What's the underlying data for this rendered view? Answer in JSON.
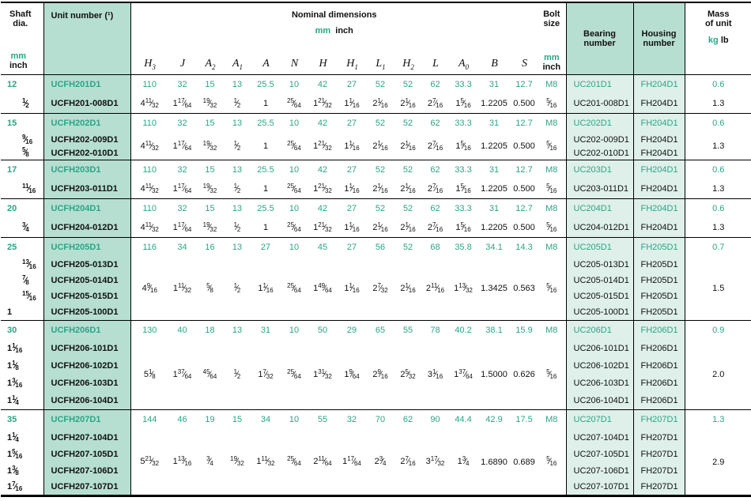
{
  "colors": {
    "accent": "#2ba586",
    "fill_dark": "#b6dfd1",
    "fill_light": "#def0e9"
  },
  "header": {
    "shaft": {
      "line1": "Shaft",
      "line2": "dia.",
      "mm": "mm",
      "inch": "inch"
    },
    "unit_number_label": "Unit number (¹)",
    "nominal": {
      "title": "Nominal dimensions",
      "mm": "mm",
      "inch": "inch"
    },
    "dim_cols": [
      "H_3",
      "J",
      "A_2",
      "A_1",
      "A",
      "N",
      "H",
      "H_1",
      "L_1",
      "H_2",
      "L",
      "A_0",
      "B",
      "S"
    ],
    "bolt": {
      "line1": "Bolt",
      "line2": "size",
      "mm": "mm",
      "inch": "inch"
    },
    "bearing": {
      "line1": "Bearing",
      "line2": "number"
    },
    "housing": {
      "line1": "Housing",
      "line2": "number"
    },
    "mass": {
      "line1": "Mass",
      "line2": "of unit",
      "kg": "kg",
      "lb": "lb"
    }
  },
  "groups": [
    {
      "shaft_mm": "12",
      "unit_mm": "UCFH201D1",
      "dims_mm": [
        "110",
        "32",
        "15",
        "13",
        "25.5",
        "10",
        "42",
        "27",
        "52",
        "52",
        "62",
        "33.3",
        "31",
        "12.7"
      ],
      "bolt_mm": "M8",
      "bearing_mm": "UC201D1",
      "housing_mm": "FH204D1",
      "mass_kg": "0.6",
      "inch_rows": [
        {
          "shaft": "1/2",
          "unit": "UCFH201-008D1",
          "bearing": "UC201-008D1",
          "housing": "FH204D1"
        }
      ],
      "dims_inch": [
        "4 11/32",
        "1 17/64",
        "19/32",
        "1/2",
        "1",
        "25/64",
        "1 21/32",
        "1 1/16",
        "2 1/16",
        "2 1/16",
        "2 7/16",
        "1 5/16",
        "1.2205",
        "0.500"
      ],
      "bolt_inch": "5/16",
      "mass_lb": "1.3"
    },
    {
      "shaft_mm": "15",
      "unit_mm": "UCFH202D1",
      "dims_mm": [
        "110",
        "32",
        "15",
        "13",
        "25.5",
        "10",
        "42",
        "27",
        "52",
        "52",
        "62",
        "33.3",
        "31",
        "12.7"
      ],
      "bolt_mm": "M8",
      "bearing_mm": "UC202D1",
      "housing_mm": "FH204D1",
      "mass_kg": "0.6",
      "inch_rows": [
        {
          "shaft": "9/16",
          "unit": "UCFH202-009D1",
          "bearing": "UC202-009D1",
          "housing": "FH204D1"
        },
        {
          "shaft": "5/8",
          "unit": "UCFH202-010D1",
          "bearing": "UC202-010D1",
          "housing": "FH204D1"
        }
      ],
      "dims_inch": [
        "4 11/32",
        "1 17/64",
        "19/32",
        "1/2",
        "1",
        "25/64",
        "1 21/32",
        "1 1/16",
        "2 1/16",
        "2 1/16",
        "2 7/16",
        "1 5/16",
        "1.2205",
        "0.500"
      ],
      "bolt_inch": "5/16",
      "mass_lb": "1.3"
    },
    {
      "shaft_mm": "17",
      "unit_mm": "UCFH203D1",
      "dims_mm": [
        "110",
        "32",
        "15",
        "13",
        "25.5",
        "10",
        "42",
        "27",
        "52",
        "52",
        "62",
        "33.3",
        "31",
        "12.7"
      ],
      "bolt_mm": "M8",
      "bearing_mm": "UC203D1",
      "housing_mm": "FH204D1",
      "mass_kg": "0.6",
      "inch_rows": [
        {
          "shaft": "11/16",
          "unit": "UCFH203-011D1",
          "bearing": "UC203-011D1",
          "housing": "FH204D1"
        }
      ],
      "dims_inch": [
        "4 11/32",
        "1 17/64",
        "19/32",
        "1/2",
        "1",
        "25/64",
        "1 21/32",
        "1 1/16",
        "2 1/16",
        "2 1/16",
        "2 7/16",
        "1 5/16",
        "1.2205",
        "0.500"
      ],
      "bolt_inch": "5/16",
      "mass_lb": "1.3"
    },
    {
      "shaft_mm": "20",
      "unit_mm": "UCFH204D1",
      "dims_mm": [
        "110",
        "32",
        "15",
        "13",
        "25.5",
        "10",
        "42",
        "27",
        "52",
        "52",
        "62",
        "33.3",
        "31",
        "12.7"
      ],
      "bolt_mm": "M8",
      "bearing_mm": "UC204D1",
      "housing_mm": "FH204D1",
      "mass_kg": "0.6",
      "inch_rows": [
        {
          "shaft": "3/4",
          "unit": "UCFH204-012D1",
          "bearing": "UC204-012D1",
          "housing": "FH204D1"
        }
      ],
      "dims_inch": [
        "4 11/32",
        "1 17/64",
        "19/32",
        "1/2",
        "1",
        "25/64",
        "1 21/32",
        "1 1/16",
        "2 1/16",
        "2 1/16",
        "2 7/16",
        "1 5/16",
        "1.2205",
        "0.500"
      ],
      "bolt_inch": "5/16",
      "mass_lb": "1.3"
    },
    {
      "shaft_mm": "25",
      "unit_mm": "UCFH205D1",
      "dims_mm": [
        "116",
        "34",
        "16",
        "13",
        "27",
        "10",
        "45",
        "27",
        "56",
        "52",
        "68",
        "35.8",
        "34.1",
        "14.3"
      ],
      "bolt_mm": "M8",
      "bearing_mm": "UC205D1",
      "housing_mm": "FH205D1",
      "mass_kg": "0.7",
      "inch_rows": [
        {
          "shaft": "13/16",
          "unit": "UCFH205-013D1",
          "bearing": "UC205-013D1",
          "housing": "FH205D1"
        },
        {
          "shaft": "7/8",
          "unit": "UCFH205-014D1",
          "bearing": "UC205-014D1",
          "housing": "FH205D1"
        },
        {
          "shaft": "15/16",
          "unit": "UCFH205-015D1",
          "bearing": "UC205-015D1",
          "housing": "FH205D1"
        },
        {
          "shaft": "1",
          "unit": "UCFH205-100D1",
          "bearing": "UC205-100D1",
          "housing": "FH205D1"
        }
      ],
      "dims_inch": [
        "4 9/16",
        "1 11/32",
        "5/8",
        "1/2",
        "1 1/16",
        "25/64",
        "1 49/64",
        "1 1/16",
        "2 7/32",
        "2 1/16",
        "2 11/16",
        "1 13/32",
        "1.3425",
        "0.563"
      ],
      "bolt_inch": "5/16",
      "mass_lb": "1.5"
    },
    {
      "shaft_mm": "30",
      "unit_mm": "UCFH206D1",
      "dims_mm": [
        "130",
        "40",
        "18",
        "13",
        "31",
        "10",
        "50",
        "29",
        "65",
        "55",
        "78",
        "40.2",
        "38.1",
        "15.9"
      ],
      "bolt_mm": "M8",
      "bearing_mm": "UC206D1",
      "housing_mm": "FH206D1",
      "mass_kg": "0.9",
      "inch_rows": [
        {
          "shaft": "1 1/16",
          "unit": "UCFH206-101D1",
          "bearing": "UC206-101D1",
          "housing": "FH206D1"
        },
        {
          "shaft": "1 1/8",
          "unit": "UCFH206-102D1",
          "bearing": "UC206-102D1",
          "housing": "FH206D1"
        },
        {
          "shaft": "1 3/16",
          "unit": "UCFH206-103D1",
          "bearing": "UC206-103D1",
          "housing": "FH206D1"
        },
        {
          "shaft": "1 1/4",
          "unit": "UCFH206-104D1",
          "bearing": "UC206-104D1",
          "housing": "FH206D1"
        }
      ],
      "dims_inch": [
        "5 1/8",
        "1 37/64",
        "45/64",
        "1/2",
        "1 7/32",
        "25/64",
        "1 31/32",
        "1 9/64",
        "2 9/16",
        "2 5/32",
        "3 1/16",
        "1 37/64",
        "1.5000",
        "0.626"
      ],
      "bolt_inch": "5/16",
      "mass_lb": "2.0"
    },
    {
      "shaft_mm": "35",
      "unit_mm": "UCFH207D1",
      "dims_mm": [
        "144",
        "46",
        "19",
        "15",
        "34",
        "10",
        "55",
        "32",
        "70",
        "62",
        "90",
        "44.4",
        "42.9",
        "17.5"
      ],
      "bolt_mm": "M8",
      "bearing_mm": "UC207D1",
      "housing_mm": "FH207D1",
      "mass_kg": "1.3",
      "inch_rows": [
        {
          "shaft": "1 1/4",
          "unit": "UCFH207-104D1",
          "bearing": "UC207-104D1",
          "housing": "FH207D1"
        },
        {
          "shaft": "1 5/16",
          "unit": "UCFH207-105D1",
          "bearing": "UC207-105D1",
          "housing": "FH207D1"
        },
        {
          "shaft": "1 3/8",
          "unit": "UCFH207-106D1",
          "bearing": "UC207-106D1",
          "housing": "FH207D1"
        },
        {
          "shaft": "1 7/16",
          "unit": "UCFH207-107D1",
          "bearing": "UC207-107D1",
          "housing": "FH207D1"
        }
      ],
      "dims_inch": [
        "5 21/32",
        "1 13/16",
        "3/4",
        "19/32",
        "1 11/32",
        "25/64",
        "2 11/64",
        "1 17/64",
        "2 3/4",
        "2 7/16",
        "3 17/32",
        "1 3/4",
        "1.6890",
        "0.689"
      ],
      "bolt_inch": "5/16",
      "mass_lb": "2.9"
    }
  ]
}
